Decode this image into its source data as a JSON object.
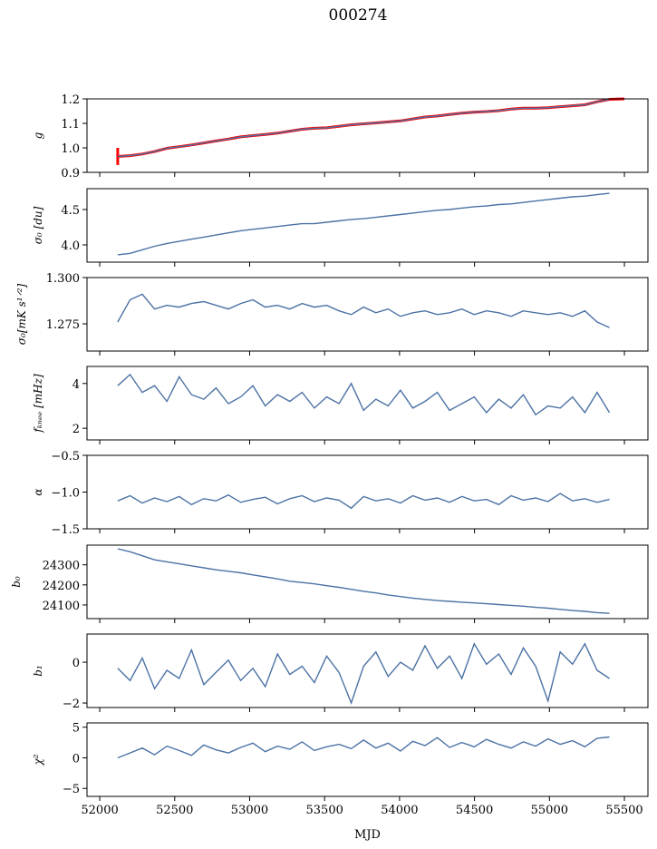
{
  "chart_data": {
    "type": "line",
    "title": "000274",
    "xlabel": "MJD",
    "xlim": [
      51915,
      55657
    ],
    "xticks": [
      52000,
      52500,
      53000,
      53500,
      54000,
      54500,
      55000,
      55500
    ],
    "x": [
      52120,
      52202,
      52284,
      52366,
      52448,
      52530,
      52612,
      52694,
      52776,
      52858,
      52940,
      53022,
      53104,
      53186,
      53268,
      53350,
      53432,
      53514,
      53596,
      53678,
      53760,
      53842,
      53924,
      54006,
      54088,
      54170,
      54252,
      54334,
      54416,
      54498,
      54580,
      54662,
      54744,
      54826,
      54908,
      54990,
      55072,
      55154,
      55236,
      55318,
      55400
    ],
    "color": "#4c72a4",
    "panels": [
      {
        "ylabel": "g",
        "ylim": [
          0.9,
          1.2
        ],
        "yticks": [
          "0.9",
          "1.0",
          "1.1",
          "1.2"
        ],
        "ytick_values": [
          0.9,
          1.0,
          1.1,
          1.2
        ],
        "values": [
          0.965,
          0.968,
          0.975,
          0.985,
          0.998,
          1.005,
          1.012,
          1.02,
          1.028,
          1.036,
          1.045,
          1.05,
          1.055,
          1.06,
          1.068,
          1.076,
          1.08,
          1.082,
          1.088,
          1.094,
          1.098,
          1.102,
          1.106,
          1.11,
          1.118,
          1.126,
          1.13,
          1.136,
          1.142,
          1.146,
          1.148,
          1.152,
          1.158,
          1.162,
          1.162,
          1.164,
          1.168,
          1.172,
          1.176,
          1.188,
          1.198
        ],
        "overlay": {
          "color": "#ff0000",
          "extra_point": [
            55500,
            1.2
          ],
          "error_bar": {
            "x": 52120,
            "low": 0.93,
            "high": 1.0
          }
        }
      },
      {
        "ylabel": "σ₀ [du]",
        "ylim": [
          3.756,
          4.795
        ],
        "yticks": [
          "4.0",
          "4.5"
        ],
        "ytick_values": [
          4.0,
          4.5
        ],
        "values": [
          3.86,
          3.88,
          3.93,
          3.98,
          4.02,
          4.05,
          4.08,
          4.11,
          4.14,
          4.17,
          4.2,
          4.22,
          4.24,
          4.26,
          4.28,
          4.3,
          4.3,
          4.32,
          4.34,
          4.36,
          4.37,
          4.39,
          4.41,
          4.43,
          4.45,
          4.47,
          4.49,
          4.5,
          4.52,
          4.54,
          4.55,
          4.57,
          4.58,
          4.6,
          4.62,
          4.64,
          4.66,
          4.68,
          4.69,
          4.71,
          4.73
        ]
      },
      {
        "ylabel": "σ₀[mK s¹ᐟ²]",
        "ylim": [
          1.2603,
          1.3
        ],
        "yticks": [
          "1.275",
          "1.300"
        ],
        "ytick_values": [
          1.275,
          1.3
        ],
        "values": [
          1.276,
          1.288,
          1.291,
          1.283,
          1.285,
          1.284,
          1.286,
          1.287,
          1.285,
          1.283,
          1.286,
          1.288,
          1.284,
          1.285,
          1.283,
          1.286,
          1.284,
          1.285,
          1.282,
          1.28,
          1.284,
          1.281,
          1.283,
          1.279,
          1.281,
          1.282,
          1.28,
          1.281,
          1.283,
          1.28,
          1.282,
          1.281,
          1.279,
          1.282,
          1.281,
          1.28,
          1.281,
          1.279,
          1.282,
          1.276,
          1.273
        ]
      },
      {
        "ylabel": "fₖₙₑₑ [mHz]",
        "ylim": [
          1.48,
          4.76
        ],
        "yticks": [
          "2",
          "4"
        ],
        "ytick_values": [
          2,
          4
        ],
        "values": [
          3.9,
          4.4,
          3.6,
          3.9,
          3.2,
          4.3,
          3.5,
          3.3,
          3.8,
          3.1,
          3.4,
          3.9,
          3.0,
          3.5,
          3.2,
          3.6,
          2.9,
          3.4,
          3.1,
          4.0,
          2.8,
          3.3,
          3.0,
          3.7,
          2.9,
          3.2,
          3.6,
          2.8,
          3.1,
          3.4,
          2.7,
          3.3,
          2.9,
          3.5,
          2.6,
          3.0,
          2.9,
          3.4,
          2.7,
          3.6,
          2.7
        ]
      },
      {
        "ylabel": "α",
        "ylim": [
          -1.5,
          -0.5
        ],
        "yticks": [
          "−1.5",
          "−1.0",
          "−0.5"
        ],
        "ytick_values": [
          -1.5,
          -1.0,
          -0.5
        ],
        "values": [
          -1.12,
          -1.05,
          -1.15,
          -1.08,
          -1.13,
          -1.06,
          -1.17,
          -1.09,
          -1.12,
          -1.04,
          -1.14,
          -1.1,
          -1.07,
          -1.16,
          -1.09,
          -1.05,
          -1.13,
          -1.08,
          -1.11,
          -1.22,
          -1.06,
          -1.12,
          -1.09,
          -1.15,
          -1.05,
          -1.11,
          -1.08,
          -1.14,
          -1.06,
          -1.12,
          -1.1,
          -1.17,
          -1.05,
          -1.11,
          -1.08,
          -1.13,
          -1.02,
          -1.12,
          -1.09,
          -1.14,
          -1.1
        ]
      },
      {
        "ylabel": "b₀",
        "ylim": [
          24032,
          24398
        ],
        "yticks": [
          "24100",
          "24200",
          "24300"
        ],
        "ytick_values": [
          24100,
          24200,
          24300
        ],
        "values": [
          24380,
          24365,
          24345,
          24325,
          24315,
          24305,
          24295,
          24285,
          24275,
          24268,
          24260,
          24250,
          24240,
          24230,
          24218,
          24212,
          24205,
          24196,
          24188,
          24178,
          24168,
          24160,
          24150,
          24142,
          24134,
          24128,
          24122,
          24118,
          24114,
          24110,
          24106,
          24102,
          24098,
          24094,
          24088,
          24084,
          24078,
          24072,
          24068,
          24062,
          24058
        ]
      },
      {
        "ylabel": "b₁",
        "ylim": [
          -2.22,
          1.38
        ],
        "yticks": [
          "−2",
          "0"
        ],
        "ytick_values": [
          -2,
          0
        ],
        "values": [
          -0.3,
          -0.9,
          0.2,
          -1.3,
          -0.4,
          -0.8,
          0.6,
          -1.1,
          -0.5,
          0.1,
          -0.9,
          -0.3,
          -1.2,
          0.4,
          -0.6,
          -0.2,
          -1.0,
          0.3,
          -0.5,
          -2.0,
          -0.2,
          0.5,
          -0.7,
          0.0,
          -0.4,
          0.8,
          -0.3,
          0.3,
          -0.8,
          0.9,
          -0.1,
          0.4,
          -0.6,
          0.7,
          -0.2,
          -1.9,
          0.5,
          -0.1,
          0.9,
          -0.4,
          -0.8
        ]
      },
      {
        "ylabel": "χ²",
        "ylim": [
          -6.3,
          5.7
        ],
        "yticks": [
          "−5",
          "0",
          "5"
        ],
        "ytick_values": [
          -5,
          0,
          5
        ],
        "values": [
          0.0,
          0.8,
          1.6,
          0.5,
          1.9,
          1.2,
          0.4,
          2.1,
          1.3,
          0.8,
          1.7,
          2.4,
          1.0,
          1.9,
          1.4,
          2.6,
          1.2,
          1.8,
          2.2,
          1.5,
          2.9,
          1.6,
          2.4,
          1.1,
          2.7,
          2.0,
          3.3,
          1.7,
          2.5,
          1.8,
          3.0,
          2.2,
          1.6,
          2.6,
          1.9,
          3.1,
          2.2,
          2.8,
          1.8,
          3.2,
          3.4
        ]
      }
    ]
  }
}
